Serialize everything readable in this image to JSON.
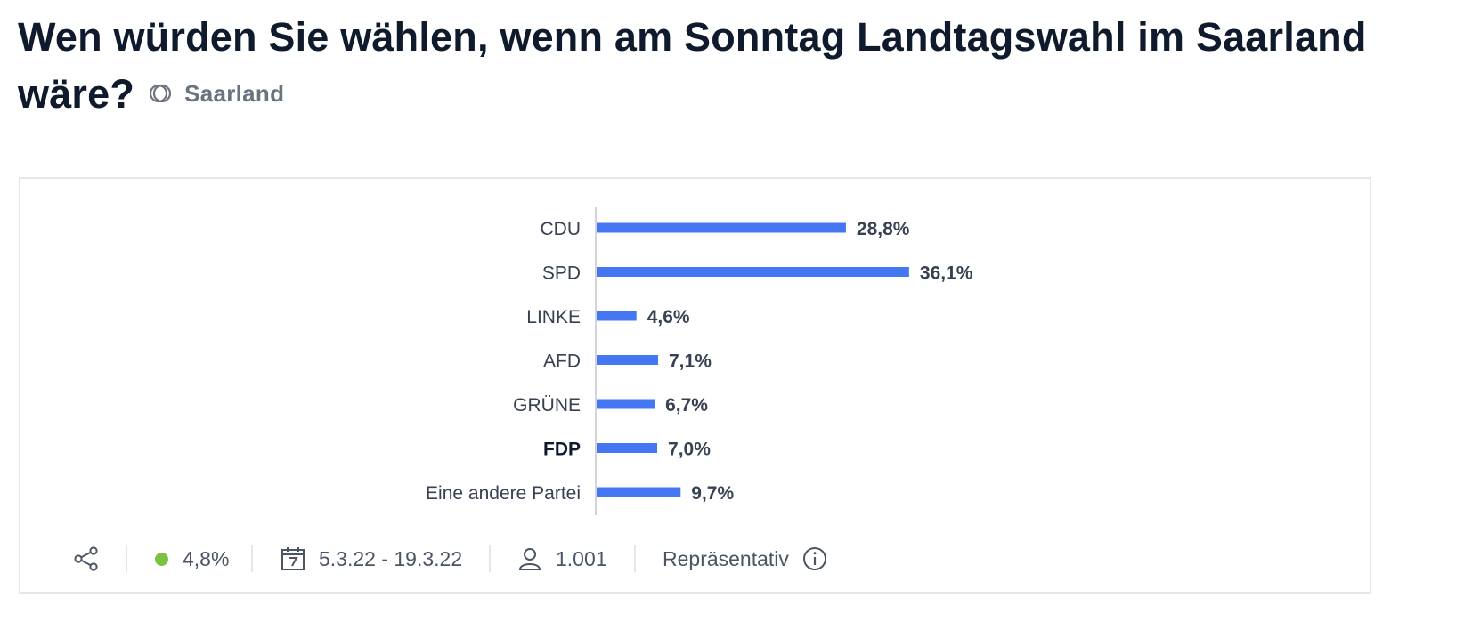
{
  "title": "Wen würden Sie wählen, wenn am Sonntag Landtagswahl im Saarland wäre?",
  "region": {
    "label": "Saarland",
    "icon": "region-circles-icon"
  },
  "chart_data": {
    "type": "bar",
    "orientation": "horizontal",
    "categories": [
      "CDU",
      "SPD",
      "LINKE",
      "AFD",
      "GRÜNE",
      "FDP",
      "Eine andere Partei"
    ],
    "values": [
      28.8,
      36.1,
      4.6,
      7.1,
      6.7,
      7.0,
      9.7
    ],
    "value_labels": [
      "28,8%",
      "36,1%",
      "4,6%",
      "7,1%",
      "6,7%",
      "7,0%",
      "9,7%"
    ],
    "highlighted_category": "FDP",
    "bar_color": "#4477f1",
    "xlim": [
      0,
      100
    ],
    "grid": false,
    "title": "",
    "xlabel": "",
    "ylabel": ""
  },
  "footer": {
    "share_icon": "share-icon",
    "error_margin": "4,8%",
    "error_dot_color": "#7cc242",
    "date_icon": "calendar-icon",
    "date_range": "5.3.22 - 19.3.22",
    "respondents_icon": "person-icon",
    "respondents": "1.001",
    "representative_label": "Repräsentativ",
    "info_icon": "info-icon"
  }
}
